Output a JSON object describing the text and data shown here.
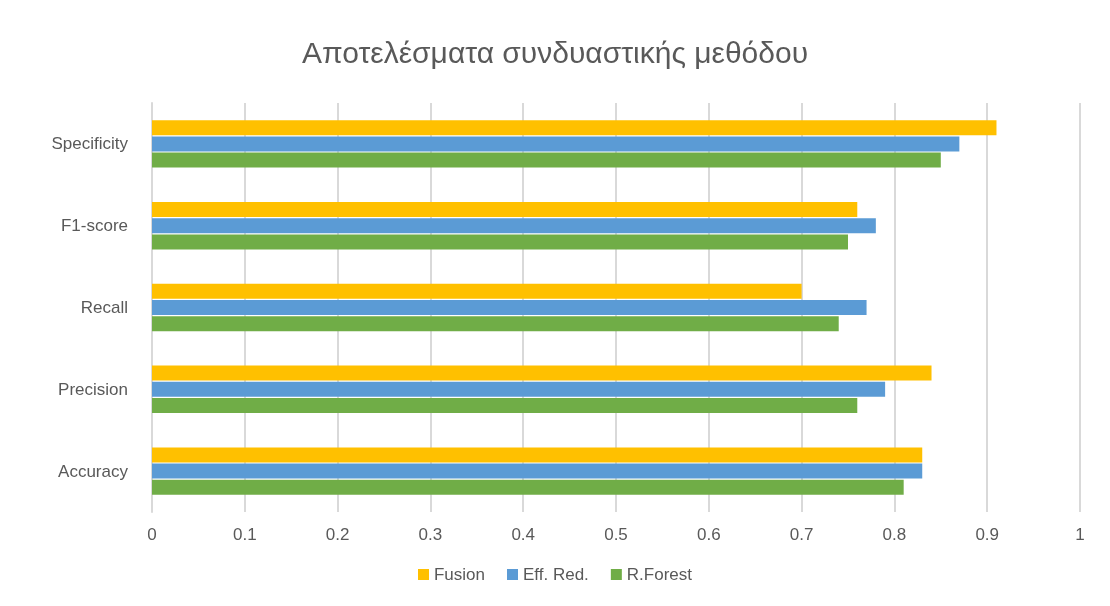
{
  "chart_data": {
    "type": "bar",
    "orientation": "horizontal",
    "title": "Αποτελέσματα συνδυαστικής μεθόδου",
    "categories": [
      "Specificity",
      "F1-score",
      "Recall",
      "Precision",
      "Accuracy"
    ],
    "series": [
      {
        "name": "Fusion",
        "color": "#ffc000",
        "values": [
          0.91,
          0.76,
          0.7,
          0.84,
          0.83
        ]
      },
      {
        "name": "Eff. Red.",
        "color": "#5b9bd5",
        "values": [
          0.87,
          0.78,
          0.77,
          0.79,
          0.83
        ]
      },
      {
        "name": "R.Forest",
        "color": "#70ad47",
        "values": [
          0.85,
          0.75,
          0.74,
          0.76,
          0.81
        ]
      }
    ],
    "xlim": [
      0,
      1
    ],
    "xticks": [
      0,
      0.1,
      0.2,
      0.3,
      0.4,
      0.5,
      0.6,
      0.7,
      0.8,
      0.9,
      1
    ],
    "grid": "x",
    "legend": "bottom"
  }
}
